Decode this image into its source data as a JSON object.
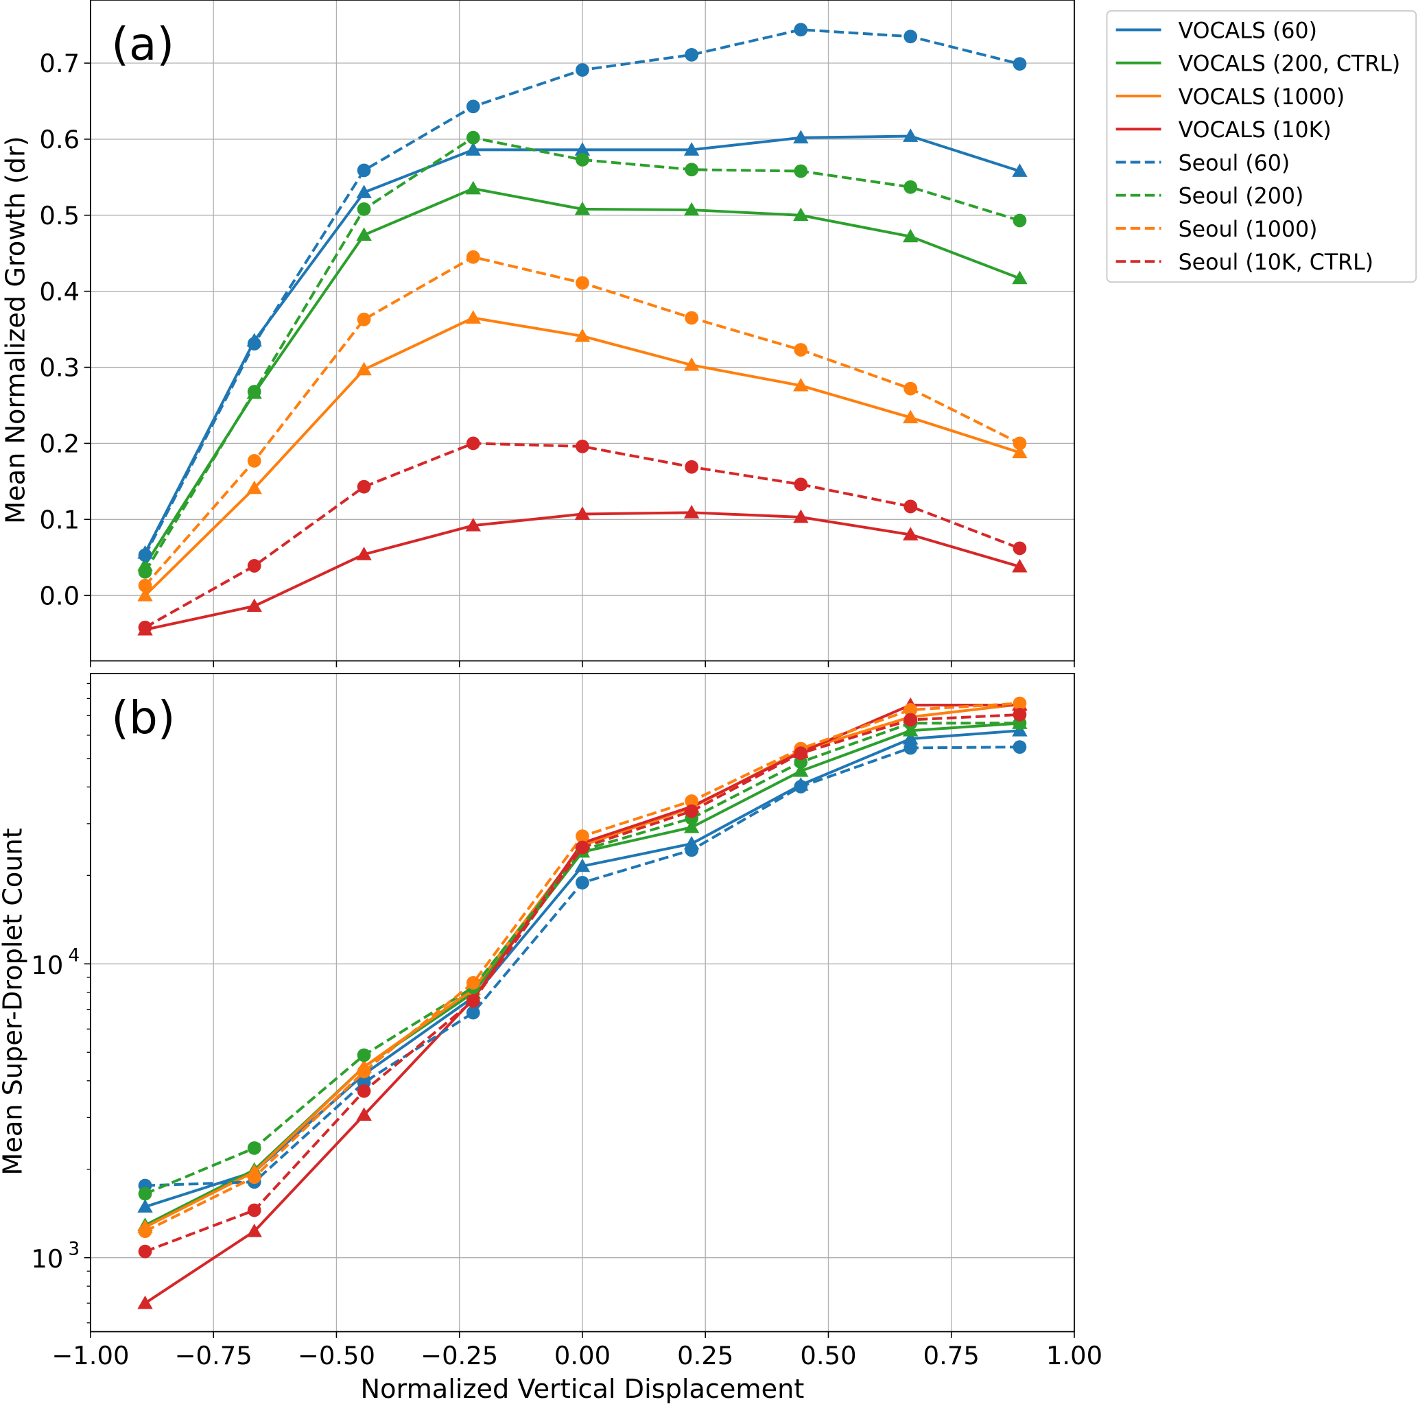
{
  "styles": [
    {
      "name": "VOCALS (60)",
      "color": "#1f77b4",
      "dashed": false,
      "marker": "triangle"
    },
    {
      "name": "VOCALS (200, CTRL)",
      "color": "#2ca02c",
      "dashed": false,
      "marker": "triangle"
    },
    {
      "name": "VOCALS (1000)",
      "color": "#ff7f0e",
      "dashed": false,
      "marker": "triangle"
    },
    {
      "name": "VOCALS (10K)",
      "color": "#d62728",
      "dashed": false,
      "marker": "triangle"
    },
    {
      "name": "Seoul (60)",
      "color": "#1f77b4",
      "dashed": true,
      "marker": "circle"
    },
    {
      "name": "Seoul (200)",
      "color": "#2ca02c",
      "dashed": true,
      "marker": "circle"
    },
    {
      "name": "Seoul (1000)",
      "color": "#ff7f0e",
      "dashed": true,
      "marker": "circle"
    },
    {
      "name": "Seoul (10K, CTRL)",
      "color": "#d62728",
      "dashed": true,
      "marker": "circle"
    }
  ],
  "legend": {
    "placement": "outside-top-right",
    "entries": [
      "VOCALS (60)",
      "VOCALS (200, CTRL)",
      "VOCALS (1000)",
      "VOCALS (10K)",
      "Seoul (60)",
      "Seoul (200)",
      "Seoul (1000)",
      "Seoul (10K, CTRL)"
    ]
  },
  "chart_data": [
    {
      "type": "line",
      "panel_label": "(a)",
      "xlabel": "",
      "ylabel": "Mean Normalized Growth (dr)",
      "yscale": "linear",
      "xlim": [
        -1.0,
        1.0
      ],
      "ylim": [
        -0.086,
        0.783
      ],
      "xticks": [
        -1.0,
        -0.75,
        -0.5,
        -0.25,
        0.0,
        0.25,
        0.5,
        0.75,
        1.0
      ],
      "yticks": [
        0.0,
        0.1,
        0.2,
        0.3,
        0.4,
        0.5,
        0.6,
        0.7
      ],
      "ytick_labels": [
        "0.0",
        "0.1",
        "0.2",
        "0.3",
        "0.4",
        "0.5",
        "0.6",
        "0.7"
      ],
      "grid": true,
      "x": [
        -0.889,
        -0.667,
        -0.444,
        -0.222,
        0.0,
        0.222,
        0.444,
        0.667,
        0.889
      ],
      "series": [
        {
          "name": "VOCALS (60)",
          "values": [
            0.056,
            0.335,
            0.53,
            0.586,
            0.586,
            0.586,
            0.602,
            0.604,
            0.558
          ]
        },
        {
          "name": "VOCALS (200, CTRL)",
          "values": [
            0.04,
            0.266,
            0.474,
            0.535,
            0.508,
            0.507,
            0.5,
            0.472,
            0.417
          ]
        },
        {
          "name": "VOCALS (1000)",
          "values": [
            0.0,
            0.141,
            0.297,
            0.365,
            0.341,
            0.303,
            0.276,
            0.234,
            0.188
          ]
        },
        {
          "name": "VOCALS (10K)",
          "values": [
            -0.045,
            -0.014,
            0.054,
            0.092,
            0.107,
            0.109,
            0.103,
            0.08,
            0.038
          ]
        },
        {
          "name": "Seoul (60)",
          "values": [
            0.053,
            0.331,
            0.559,
            0.643,
            0.691,
            0.711,
            0.744,
            0.735,
            0.699
          ]
        },
        {
          "name": "Seoul (200)",
          "values": [
            0.031,
            0.268,
            0.508,
            0.602,
            0.573,
            0.56,
            0.558,
            0.537,
            0.493
          ]
        },
        {
          "name": "Seoul (1000)",
          "values": [
            0.013,
            0.177,
            0.363,
            0.445,
            0.411,
            0.365,
            0.323,
            0.272,
            0.2
          ]
        },
        {
          "name": "Seoul (10K, CTRL)",
          "values": [
            -0.042,
            0.039,
            0.143,
            0.2,
            0.196,
            0.169,
            0.146,
            0.117,
            0.062
          ]
        }
      ]
    },
    {
      "type": "line",
      "panel_label": "(b)",
      "xlabel": "Normalized Vertical Displacement",
      "ylabel": "Mean Super-Droplet Count",
      "yscale": "log",
      "xlim": [
        -1.0,
        1.0
      ],
      "ylim": [
        560,
        97300
      ],
      "xticks": [
        -1.0,
        -0.75,
        -0.5,
        -0.25,
        0.0,
        0.25,
        0.5,
        0.75,
        1.0
      ],
      "xtick_labels": [
        "−1.00",
        "−0.75",
        "−0.50",
        "−0.25",
        "0.00",
        "0.25",
        "0.50",
        "0.75",
        "1.00"
      ],
      "yticks": [
        1000,
        10000
      ],
      "ytick_labels": [
        {
          "base": "10",
          "exp": "3"
        },
        {
          "base": "10",
          "exp": "4"
        }
      ],
      "grid": true,
      "x": [
        -0.889,
        -0.667,
        -0.444,
        -0.222,
        0.0,
        0.222,
        0.444,
        0.667,
        0.889
      ],
      "series": [
        {
          "name": "VOCALS (60)",
          "values": [
            1490,
            1960,
            4210,
            7690,
            21500,
            25650,
            40650,
            58350,
            62200
          ]
        },
        {
          "name": "VOCALS (200, CTRL)",
          "values": [
            1290,
            1990,
            4460,
            7970,
            24050,
            29150,
            45300,
            62200,
            65900
          ]
        },
        {
          "name": "VOCALS (1000)",
          "values": [
            1270,
            1960,
            4460,
            8200,
            25300,
            34000,
            53200,
            69200,
            76400
          ]
        },
        {
          "name": "VOCALS (10K)",
          "values": [
            700,
            1230,
            3060,
            7590,
            25800,
            34300,
            52500,
            76000,
            76000
          ]
        },
        {
          "name": "Seoul (60)",
          "values": [
            1760,
            1810,
            3950,
            6820,
            18900,
            24400,
            40100,
            54300,
            54700
          ]
        },
        {
          "name": "Seoul (200)",
          "values": [
            1650,
            2360,
            4890,
            8320,
            24400,
            31300,
            48600,
            65900,
            66000
          ]
        },
        {
          "name": "Seoul (1000)",
          "values": [
            1230,
            1880,
            4300,
            8620,
            27200,
            35800,
            54000,
            73200,
            77000
          ]
        },
        {
          "name": "Seoul (10K, CTRL)",
          "values": [
            1050,
            1450,
            3690,
            7480,
            24900,
            33100,
            52100,
            67700,
            70500
          ]
        }
      ]
    }
  ]
}
